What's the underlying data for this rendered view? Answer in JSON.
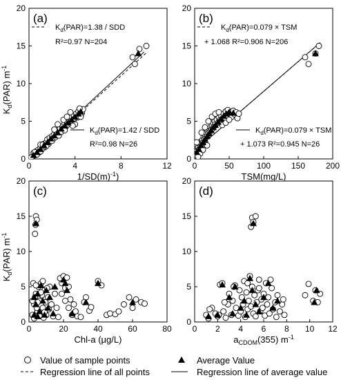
{
  "figure": {
    "ylabel_main": "K",
    "ylabel_sub": "d",
    "ylabel_tail": "(PAR) m",
    "ylabel_sup": "-1"
  },
  "legend": {
    "sample_points": "Value of sample points",
    "average_value": "Average Value",
    "regression_all": "Regression line of all points",
    "regression_avg": "Regression line of average value"
  },
  "chart_data": [
    {
      "panel": "(a)",
      "type": "scatter",
      "xlabel": "1/SD(m",
      "xlabel_sup": "-1",
      "xlabel_tail": ")",
      "xlim": [
        0,
        12
      ],
      "ylim": [
        0,
        20
      ],
      "xticks": [
        0,
        4,
        8,
        12
      ],
      "yticks": [
        0,
        5,
        10,
        15,
        20
      ],
      "annotations": {
        "all_eq": "K(PAR)=1.38 / SDD",
        "all_stats": "R²=0.97   N=204",
        "avg_eq": "K(PAR)=1.42 / SDD",
        "avg_stats": "R²=0.98  N=26"
      },
      "regression_all": {
        "slope": 1.38,
        "intercept": 0
      },
      "regression_avg": {
        "slope": 1.42,
        "intercept": 0
      },
      "samples": [
        [
          0.3,
          0.3
        ],
        [
          0.4,
          0.8
        ],
        [
          0.5,
          0.5
        ],
        [
          0.6,
          1.0
        ],
        [
          0.7,
          0.6
        ],
        [
          0.8,
          1.2
        ],
        [
          0.9,
          0.9
        ],
        [
          1.0,
          1.5
        ],
        [
          1.0,
          1.0
        ],
        [
          1.1,
          1.8
        ],
        [
          1.2,
          1.4
        ],
        [
          1.3,
          2.0
        ],
        [
          1.4,
          1.6
        ],
        [
          1.5,
          2.2
        ],
        [
          1.6,
          2.6
        ],
        [
          1.7,
          2.0
        ],
        [
          1.8,
          2.8
        ],
        [
          1.9,
          2.4
        ],
        [
          2.0,
          3.0
        ],
        [
          2.1,
          2.7
        ],
        [
          2.2,
          3.3
        ],
        [
          2.3,
          2.9
        ],
        [
          2.4,
          3.5
        ],
        [
          2.5,
          3.8
        ],
        [
          2.6,
          3.1
        ],
        [
          2.7,
          4.0
        ],
        [
          2.8,
          3.6
        ],
        [
          2.9,
          4.3
        ],
        [
          3.0,
          4.0
        ],
        [
          3.1,
          4.7
        ],
        [
          3.2,
          4.3
        ],
        [
          3.3,
          5.0
        ],
        [
          3.4,
          4.6
        ],
        [
          3.5,
          5.2
        ],
        [
          3.6,
          4.9
        ],
        [
          3.7,
          5.6
        ],
        [
          3.8,
          5.0
        ],
        [
          3.9,
          5.8
        ],
        [
          4.0,
          5.4
        ],
        [
          4.1,
          6.0
        ],
        [
          4.2,
          5.5
        ],
        [
          4.3,
          6.3
        ],
        [
          4.4,
          5.9
        ],
        [
          4.5,
          6.5
        ],
        [
          4.6,
          6.1
        ],
        [
          4.7,
          6.6
        ],
        [
          3.0,
          5.2
        ],
        [
          3.3,
          5.6
        ],
        [
          2.5,
          4.6
        ],
        [
          2.0,
          2.4
        ],
        [
          1.5,
          1.7
        ],
        [
          1.0,
          1.9
        ],
        [
          3.6,
          6.2
        ],
        [
          4.0,
          4.6
        ],
        [
          4.5,
          5.6
        ],
        [
          9.0,
          13.5
        ],
        [
          9.2,
          12.6
        ],
        [
          9.6,
          14.6
        ],
        [
          10.2,
          15.0
        ],
        [
          0.2,
          0.2
        ],
        [
          0.5,
          0.9
        ],
        [
          1.2,
          1.9
        ],
        [
          2.2,
          3.9
        ],
        [
          3.1,
          3.8
        ],
        [
          3.8,
          4.4
        ],
        [
          4.4,
          6.7
        ]
      ],
      "averages": [
        [
          0.4,
          0.5
        ],
        [
          0.7,
          0.9
        ],
        [
          1.0,
          1.3
        ],
        [
          1.3,
          1.8
        ],
        [
          1.6,
          2.2
        ],
        [
          1.9,
          2.7
        ],
        [
          2.2,
          3.1
        ],
        [
          2.5,
          3.5
        ],
        [
          2.8,
          4.0
        ],
        [
          3.1,
          4.4
        ],
        [
          3.4,
          4.8
        ],
        [
          3.7,
          5.2
        ],
        [
          4.0,
          5.6
        ],
        [
          4.3,
          6.0
        ],
        [
          4.5,
          6.3
        ],
        [
          9.5,
          14.0
        ]
      ]
    },
    {
      "panel": "(b)",
      "type": "scatter",
      "xlabel": "TSM(mg/L)",
      "xlim": [
        0,
        200
      ],
      "ylim": [
        0,
        20
      ],
      "xticks": [
        0,
        50,
        100,
        150,
        200
      ],
      "yticks": [
        0,
        5,
        10,
        15,
        20
      ],
      "annotations": {
        "all_eq": "K(PAR)=0.079 × TSM",
        "all_stats": "+ 1.068  R²=0.906  N=206",
        "avg_eq": "K(PAR)=0.079 × TSM",
        "avg_stats": "+ 1.073  R²=0.945  N=26"
      },
      "regression_all": {
        "slope": 0.079,
        "intercept": 1.068
      },
      "regression_avg": {
        "slope": 0.079,
        "intercept": 1.073
      },
      "samples": [
        [
          2,
          0.5
        ],
        [
          3,
          1.0
        ],
        [
          4,
          0.8
        ],
        [
          5,
          1.5
        ],
        [
          6,
          1.2
        ],
        [
          7,
          2.0
        ],
        [
          8,
          1.6
        ],
        [
          9,
          2.3
        ],
        [
          10,
          1.9
        ],
        [
          11,
          2.5
        ],
        [
          12,
          2.2
        ],
        [
          13,
          2.9
        ],
        [
          14,
          2.6
        ],
        [
          15,
          3.2
        ],
        [
          16,
          2.8
        ],
        [
          17,
          3.5
        ],
        [
          18,
          3.0
        ],
        [
          19,
          3.7
        ],
        [
          20,
          3.4
        ],
        [
          21,
          4.0
        ],
        [
          22,
          3.6
        ],
        [
          23,
          4.2
        ],
        [
          24,
          3.9
        ],
        [
          25,
          4.5
        ],
        [
          26,
          4.0
        ],
        [
          27,
          4.7
        ],
        [
          28,
          4.3
        ],
        [
          29,
          5.0
        ],
        [
          30,
          4.6
        ],
        [
          32,
          5.2
        ],
        [
          34,
          4.8
        ],
        [
          35,
          5.5
        ],
        [
          36,
          5.1
        ],
        [
          38,
          5.8
        ],
        [
          40,
          5.3
        ],
        [
          42,
          6.0
        ],
        [
          44,
          5.5
        ],
        [
          45,
          6.3
        ],
        [
          46,
          5.8
        ],
        [
          48,
          6.5
        ],
        [
          50,
          6.0
        ],
        [
          52,
          6.2
        ],
        [
          54,
          5.6
        ],
        [
          56,
          6.4
        ],
        [
          58,
          5.9
        ],
        [
          60,
          6.2
        ],
        [
          62,
          5.4
        ],
        [
          64,
          6.0
        ],
        [
          20,
          5.0
        ],
        [
          25,
          5.6
        ],
        [
          30,
          6.0
        ],
        [
          35,
          6.2
        ],
        [
          10,
          3.5
        ],
        [
          15,
          4.2
        ],
        [
          40,
          4.5
        ],
        [
          45,
          4.8
        ],
        [
          50,
          5.2
        ],
        [
          8,
          0.7
        ],
        [
          5,
          0.3
        ],
        [
          12,
          1.2
        ],
        [
          160,
          13.5
        ],
        [
          165,
          12.6
        ],
        [
          175,
          14.0
        ],
        [
          180,
          15.0
        ],
        [
          3,
          2.2
        ],
        [
          18,
          1.8
        ]
      ],
      "averages": [
        [
          3,
          0.9
        ],
        [
          6,
          1.3
        ],
        [
          9,
          1.8
        ],
        [
          12,
          2.2
        ],
        [
          15,
          2.6
        ],
        [
          18,
          3.0
        ],
        [
          21,
          3.4
        ],
        [
          24,
          3.8
        ],
        [
          27,
          4.2
        ],
        [
          30,
          4.5
        ],
        [
          34,
          4.9
        ],
        [
          38,
          5.3
        ],
        [
          42,
          5.7
        ],
        [
          46,
          6.0
        ],
        [
          50,
          6.2
        ],
        [
          56,
          6.1
        ],
        [
          175,
          14.0
        ]
      ]
    },
    {
      "panel": "(c)",
      "type": "scatter",
      "xlabel": "Chl-a (μg/L)",
      "xlim": [
        0,
        80
      ],
      "ylim": [
        0,
        20
      ],
      "xticks": [
        0,
        20,
        40,
        60,
        80
      ],
      "yticks": [
        0,
        5,
        10,
        15,
        20
      ],
      "samples": [
        [
          3.5,
          12.5
        ],
        [
          4.0,
          15.0
        ],
        [
          4.5,
          14.5
        ],
        [
          3.8,
          13.8
        ],
        [
          2,
          1.0
        ],
        [
          3,
          2.5
        ],
        [
          4,
          4.0
        ],
        [
          5,
          1.5
        ],
        [
          6,
          3.0
        ],
        [
          7,
          5.5
        ],
        [
          8,
          2.0
        ],
        [
          9,
          4.5
        ],
        [
          10,
          1.0
        ],
        [
          11,
          3.5
        ],
        [
          12,
          5.0
        ],
        [
          13,
          2.5
        ],
        [
          14,
          0.8
        ],
        [
          15,
          4.0
        ],
        [
          2.5,
          5.5
        ],
        [
          3.5,
          3.5
        ],
        [
          4.5,
          2.0
        ],
        [
          5.5,
          5.0
        ],
        [
          6.5,
          1.2
        ],
        [
          7.5,
          3.8
        ],
        [
          8.5,
          0.6
        ],
        [
          9.5,
          2.8
        ],
        [
          10.5,
          4.8
        ],
        [
          11.5,
          1.8
        ],
        [
          2,
          3.0
        ],
        [
          3,
          0.5
        ],
        [
          4,
          5.2
        ],
        [
          5,
          2.8
        ],
        [
          6,
          0.9
        ],
        [
          7,
          4.2
        ],
        [
          8,
          5.8
        ],
        [
          9,
          1.4
        ],
        [
          16,
          2.0
        ],
        [
          17,
          0.7
        ],
        [
          18,
          6.2
        ],
        [
          19,
          5.5
        ],
        [
          20,
          6.5
        ],
        [
          21,
          4.8
        ],
        [
          22,
          6.3
        ],
        [
          23,
          5.0
        ],
        [
          24,
          3.2
        ],
        [
          25,
          1.0
        ],
        [
          26,
          2.5
        ],
        [
          27,
          1.5
        ],
        [
          28,
          0.8
        ],
        [
          30,
          0.7
        ],
        [
          32,
          2.8
        ],
        [
          33,
          3.5
        ],
        [
          35,
          1.6
        ],
        [
          36,
          2.1
        ],
        [
          40,
          5.8
        ],
        [
          42,
          5.2
        ],
        [
          45,
          1.0
        ],
        [
          47,
          1.2
        ],
        [
          50,
          1.1
        ],
        [
          52,
          1.5
        ],
        [
          55,
          2.5
        ],
        [
          58,
          3.5
        ],
        [
          60,
          2.0
        ],
        [
          62,
          3.2
        ],
        [
          65,
          2.8
        ],
        [
          67,
          2.6
        ],
        [
          19,
          4.0
        ],
        [
          21,
          3.0
        ],
        [
          23,
          2.0
        ]
      ],
      "averages": [
        [
          4,
          14.0
        ],
        [
          3,
          1.0
        ],
        [
          4,
          2.5
        ],
        [
          5,
          4.0
        ],
        [
          6,
          1.5
        ],
        [
          7,
          5.2
        ],
        [
          8,
          3.0
        ],
        [
          9,
          1.0
        ],
        [
          10,
          4.5
        ],
        [
          11,
          2.0
        ],
        [
          12,
          3.5
        ],
        [
          14,
          1.2
        ],
        [
          15,
          5.0
        ],
        [
          20,
          6.0
        ],
        [
          21,
          5.5
        ],
        [
          22,
          4.5
        ],
        [
          25,
          1.2
        ],
        [
          33,
          2.8
        ],
        [
          40,
          5.5
        ],
        [
          60,
          2.8
        ],
        [
          3,
          3.5
        ],
        [
          5,
          0.8
        ]
      ]
    },
    {
      "panel": "(d)",
      "type": "scatter",
      "xlabel": "a",
      "xlabel_sub": "CDOM",
      "xlabel_tail": "(355)  m",
      "xlabel_sup": "-1",
      "xlim": [
        0,
        12
      ],
      "ylim": [
        0,
        20
      ],
      "xticks": [
        0,
        2,
        4,
        6,
        8,
        10,
        12
      ],
      "yticks": [
        0,
        5,
        10,
        15,
        20
      ],
      "samples": [
        [
          5.0,
          14.8
        ],
        [
          5.3,
          15.0
        ],
        [
          4.9,
          13.5
        ],
        [
          5.1,
          14.2
        ],
        [
          1.0,
          1.0
        ],
        [
          1.2,
          0.5
        ],
        [
          1.5,
          2.0
        ],
        [
          1.8,
          1.2
        ],
        [
          2.0,
          0.8
        ],
        [
          2.2,
          5.3
        ],
        [
          2.4,
          5.5
        ],
        [
          2.5,
          1.5
        ],
        [
          2.7,
          0.6
        ],
        [
          2.9,
          2.5
        ],
        [
          3.0,
          4.0
        ],
        [
          3.2,
          1.0
        ],
        [
          3.3,
          3.0
        ],
        [
          3.5,
          5.2
        ],
        [
          3.6,
          2.0
        ],
        [
          3.8,
          0.9
        ],
        [
          3.9,
          4.5
        ],
        [
          4.0,
          1.5
        ],
        [
          4.1,
          3.5
        ],
        [
          4.2,
          2.5
        ],
        [
          4.3,
          5.8
        ],
        [
          4.4,
          0.7
        ],
        [
          4.5,
          4.2
        ],
        [
          4.6,
          1.8
        ],
        [
          4.7,
          3.0
        ],
        [
          4.8,
          6.5
        ],
        [
          4.9,
          2.2
        ],
        [
          5.0,
          5.0
        ],
        [
          5.1,
          1.2
        ],
        [
          5.2,
          3.8
        ],
        [
          5.3,
          0.8
        ],
        [
          5.4,
          2.8
        ],
        [
          5.5,
          4.5
        ],
        [
          5.6,
          6.0
        ],
        [
          5.7,
          1.5
        ],
        [
          5.8,
          3.2
        ],
        [
          5.9,
          2.0
        ],
        [
          6.0,
          4.0
        ],
        [
          6.1,
          0.9
        ],
        [
          6.2,
          5.5
        ],
        [
          6.3,
          2.5
        ],
        [
          6.4,
          3.5
        ],
        [
          6.5,
          1.2
        ],
        [
          6.6,
          6.0
        ],
        [
          6.7,
          4.8
        ],
        [
          6.8,
          1.8
        ],
        [
          7.0,
          2.8
        ],
        [
          7.1,
          0.7
        ],
        [
          7.2,
          3.8
        ],
        [
          7.4,
          1.5
        ],
        [
          7.6,
          2.5
        ],
        [
          7.7,
          3.2
        ],
        [
          7.8,
          1.0
        ],
        [
          2.6,
          2.8
        ],
        [
          3.4,
          5.0
        ],
        [
          4.6,
          5.5
        ],
        [
          5.6,
          4.8
        ],
        [
          9.6,
          3.8
        ],
        [
          9.9,
          5.4
        ],
        [
          10.3,
          3.0
        ],
        [
          10.5,
          4.5
        ],
        [
          10.7,
          2.8
        ],
        [
          10.9,
          4.0
        ],
        [
          1.3,
          1.8
        ],
        [
          2.1,
          1.0
        ]
      ],
      "averages": [
        [
          5.1,
          14.0
        ],
        [
          1.2,
          0.8
        ],
        [
          2.0,
          1.0
        ],
        [
          2.4,
          5.3
        ],
        [
          3.0,
          3.5
        ],
        [
          3.5,
          5.0
        ],
        [
          4.0,
          2.0
        ],
        [
          4.3,
          3.0
        ],
        [
          4.8,
          6.2
        ],
        [
          5.0,
          4.5
        ],
        [
          5.3,
          2.5
        ],
        [
          5.6,
          1.5
        ],
        [
          6.0,
          3.5
        ],
        [
          6.4,
          5.5
        ],
        [
          6.8,
          2.0
        ],
        [
          7.2,
          3.0
        ],
        [
          10.4,
          2.8
        ],
        [
          10.6,
          4.5
        ],
        [
          4.5,
          1.0
        ],
        [
          3.3,
          1.2
        ]
      ]
    }
  ]
}
